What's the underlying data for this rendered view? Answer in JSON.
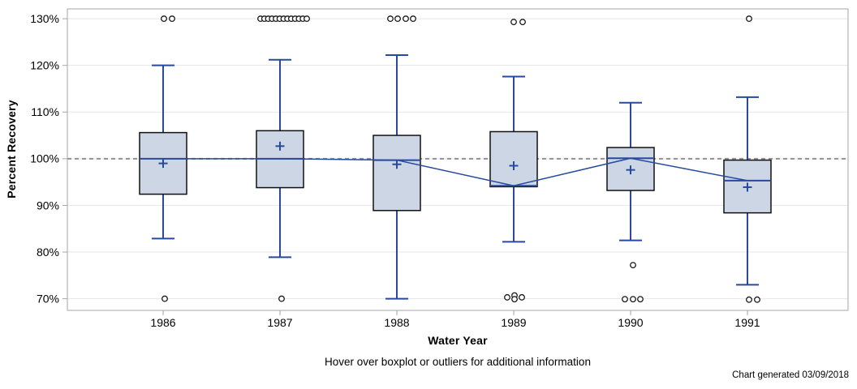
{
  "chart_data": {
    "type": "boxplot",
    "xlabel": "Water Year",
    "ylabel": "Percent Recovery",
    "footnote": "Hover over boxplot or outliers for additional information",
    "generated_note": "Chart generated 03/09/2018",
    "categories": [
      "1986",
      "1987",
      "1988",
      "1989",
      "1990",
      "1991"
    ],
    "y_ticks": [
      {
        "label": "130%",
        "value": 130
      },
      {
        "label": "120%",
        "value": 120
      },
      {
        "label": "110%",
        "value": 110
      },
      {
        "label": "100%",
        "value": 100
      },
      {
        "label": "90%",
        "value": 90
      },
      {
        "label": "80%",
        "value": 80
      },
      {
        "label": "70%",
        "value": 70
      }
    ],
    "ylim": [
      67.5,
      132.1
    ],
    "reference_line": 100,
    "grid": true,
    "series": [
      {
        "year": "1986",
        "whisker_low": 82.9,
        "q1": 92.4,
        "median": 100.0,
        "mean": 99.0,
        "q3": 105.6,
        "whisker_high": 120.0,
        "outliers": [
          {
            "value": 130,
            "dx": 1
          },
          {
            "value": 130,
            "dx": 11
          },
          {
            "value": 70,
            "dx": 2
          }
        ]
      },
      {
        "year": "1987",
        "whisker_low": 78.9,
        "q1": 93.8,
        "median": 100.0,
        "mean": 102.7,
        "q3": 106.0,
        "whisker_high": 121.2,
        "outliers": [
          {
            "value": 130,
            "dx": -24
          },
          {
            "value": 130,
            "dx": -19.2
          },
          {
            "value": 130,
            "dx": -14.5
          },
          {
            "value": 130,
            "dx": -9.8
          },
          {
            "value": 130,
            "dx": -5
          },
          {
            "value": 130,
            "dx": -0.3
          },
          {
            "value": 130,
            "dx": 4.5
          },
          {
            "value": 130,
            "dx": 9.2
          },
          {
            "value": 130,
            "dx": 13.9
          },
          {
            "value": 130,
            "dx": 18.7
          },
          {
            "value": 130,
            "dx": 23.4
          },
          {
            "value": 130,
            "dx": 28.2
          },
          {
            "value": 130,
            "dx": 33
          },
          {
            "value": 70,
            "dx": 2
          }
        ]
      },
      {
        "year": "1988",
        "whisker_low": 70.0,
        "q1": 88.9,
        "median": 99.7,
        "mean": 98.8,
        "q3": 105.0,
        "whisker_high": 122.2,
        "outliers": [
          {
            "value": 130,
            "dx": -8
          },
          {
            "value": 130,
            "dx": 1
          },
          {
            "value": 130,
            "dx": 11
          },
          {
            "value": 130,
            "dx": 20
          }
        ]
      },
      {
        "year": "1989",
        "whisker_low": 82.2,
        "q1": 94.0,
        "median": 94.2,
        "mean": 98.5,
        "q3": 105.8,
        "whisker_high": 117.6,
        "outliers": [
          {
            "value": 129.3,
            "dx": 0
          },
          {
            "value": 129.3,
            "dx": 11
          },
          {
            "value": 70.3,
            "dx": -8
          },
          {
            "value": 70.7,
            "dx": 1
          },
          {
            "value": 69.9,
            "dx": 1
          },
          {
            "value": 70.3,
            "dx": 10
          }
        ]
      },
      {
        "year": "1990",
        "whisker_low": 82.5,
        "q1": 93.2,
        "median": 100.1,
        "mean": 97.6,
        "q3": 102.4,
        "whisker_high": 112.0,
        "outliers": [
          {
            "value": 77.2,
            "dx": 3
          },
          {
            "value": 69.9,
            "dx": -7
          },
          {
            "value": 69.9,
            "dx": 3
          },
          {
            "value": 69.9,
            "dx": 12
          }
        ]
      },
      {
        "year": "1991",
        "whisker_low": 73.0,
        "q1": 88.4,
        "median": 95.3,
        "mean": 93.9,
        "q3": 99.7,
        "whisker_high": 113.2,
        "outliers": [
          {
            "value": 130,
            "dx": 2
          },
          {
            "value": 69.8,
            "dx": 2
          },
          {
            "value": 69.8,
            "dx": 12
          }
        ]
      }
    ],
    "colors": {
      "box_fill": "#ccd6e4",
      "box_border": "#111111",
      "line_blue": "#274a9e",
      "reference_gray": "#919191",
      "grid": "#e5e5e5",
      "frame": "#a6a6a6",
      "tick": "#a6a6a6",
      "outlier_stroke": "#1a1a1a",
      "text": "#000000"
    }
  }
}
